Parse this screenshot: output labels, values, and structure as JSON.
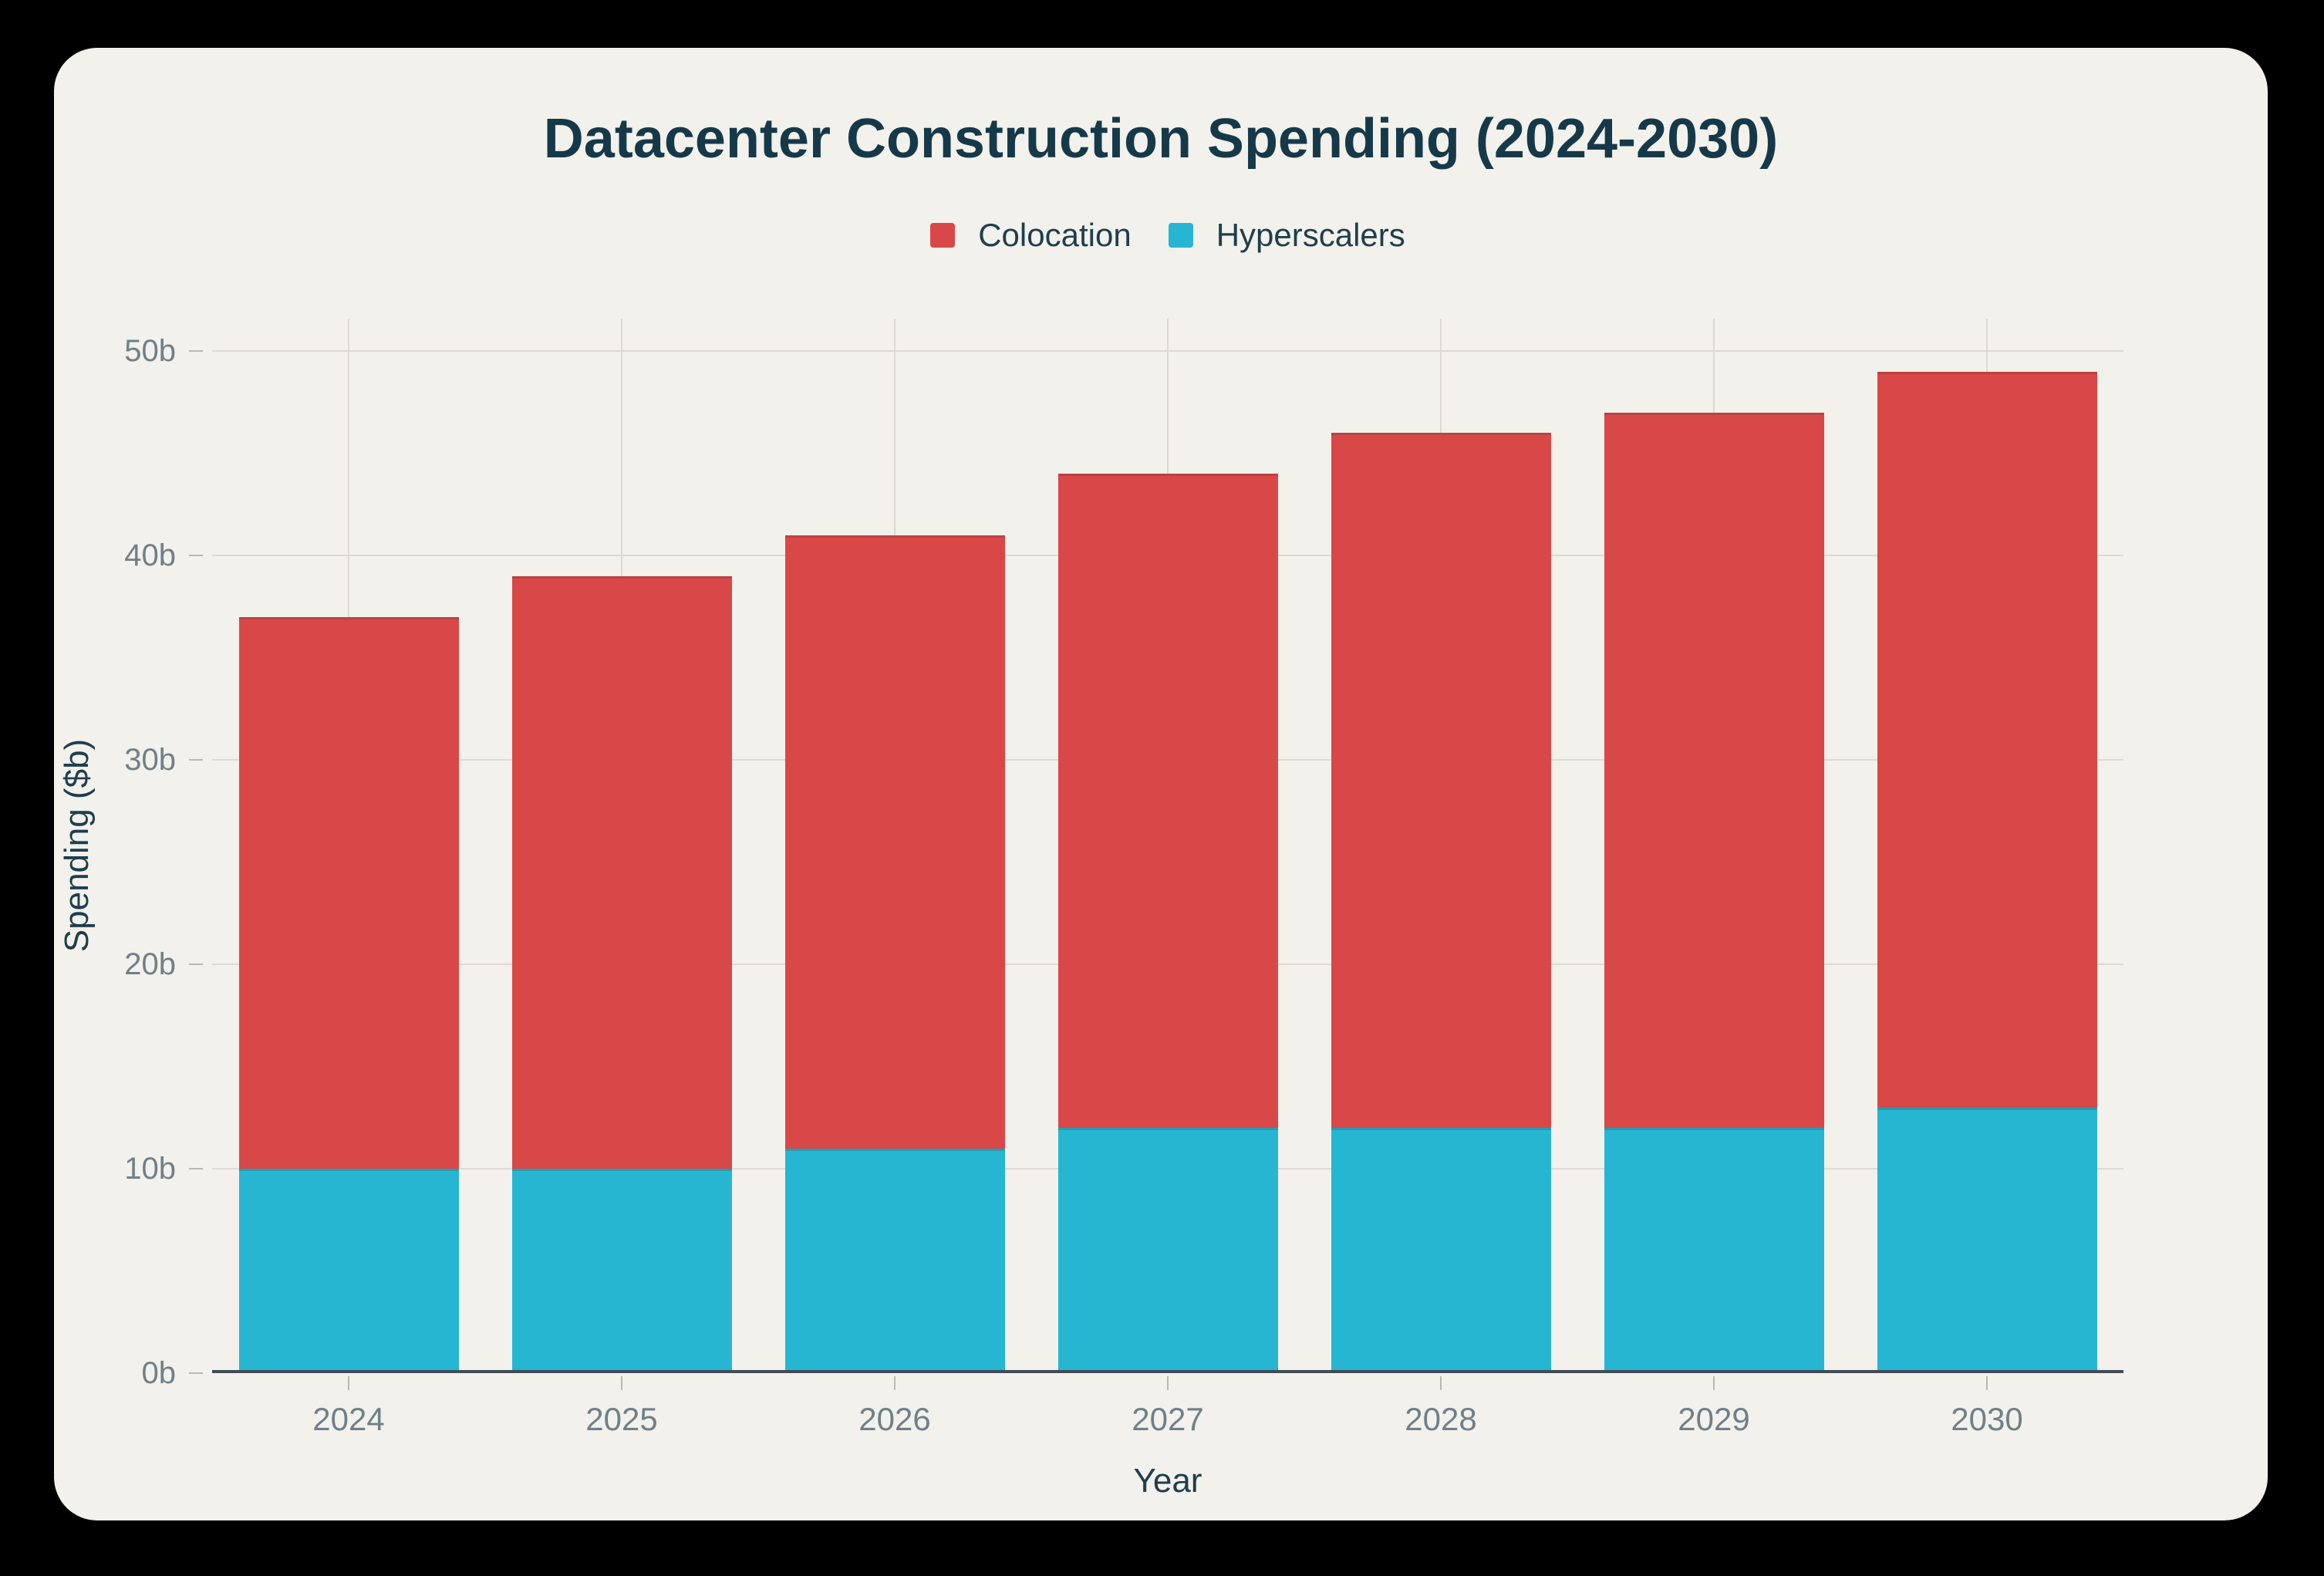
{
  "title": "Datacenter Construction Spending (2024-2030)",
  "legend": [
    {
      "label": "Colocation",
      "color": "#d94848"
    },
    {
      "label": "Hyperscalers",
      "color": "#27b6d2"
    }
  ],
  "axes": {
    "x_title": "Year",
    "y_title": "Spending ($b)"
  },
  "chart_data": {
    "type": "bar",
    "stacked": true,
    "title": "Datacenter Construction Spending (2024-2030)",
    "xlabel": "Year",
    "ylabel": "Spending ($b)",
    "categories": [
      "2024",
      "2025",
      "2026",
      "2027",
      "2028",
      "2029",
      "2030"
    ],
    "series": [
      {
        "name": "Hyperscalers",
        "color": "#27b6d2",
        "stack_position": "bottom",
        "values": [
          10,
          10,
          11,
          12,
          12,
          12,
          13
        ]
      },
      {
        "name": "Colocation",
        "color": "#d94848",
        "stack_position": "top",
        "values": [
          27,
          29,
          30,
          32,
          34,
          35,
          36
        ]
      }
    ],
    "totals": [
      37,
      39,
      41,
      44,
      46,
      47,
      49
    ],
    "ylim": [
      0,
      50
    ],
    "ytick_step": 10,
    "ytick_labels": [
      "0b",
      "10b",
      "20b",
      "30b",
      "40b",
      "50b"
    ],
    "grid": true,
    "legend_position": "top-center"
  },
  "colors": {
    "page_background": "#000000",
    "card_background": "#f2f1eb",
    "title_text": "#16394a",
    "axis_title_text": "#1f3e4d",
    "tick_text": "#6f8089",
    "gridline": "#dcdad3",
    "tick_mark": "#b9b8b1",
    "axis_line": "#414c57"
  }
}
